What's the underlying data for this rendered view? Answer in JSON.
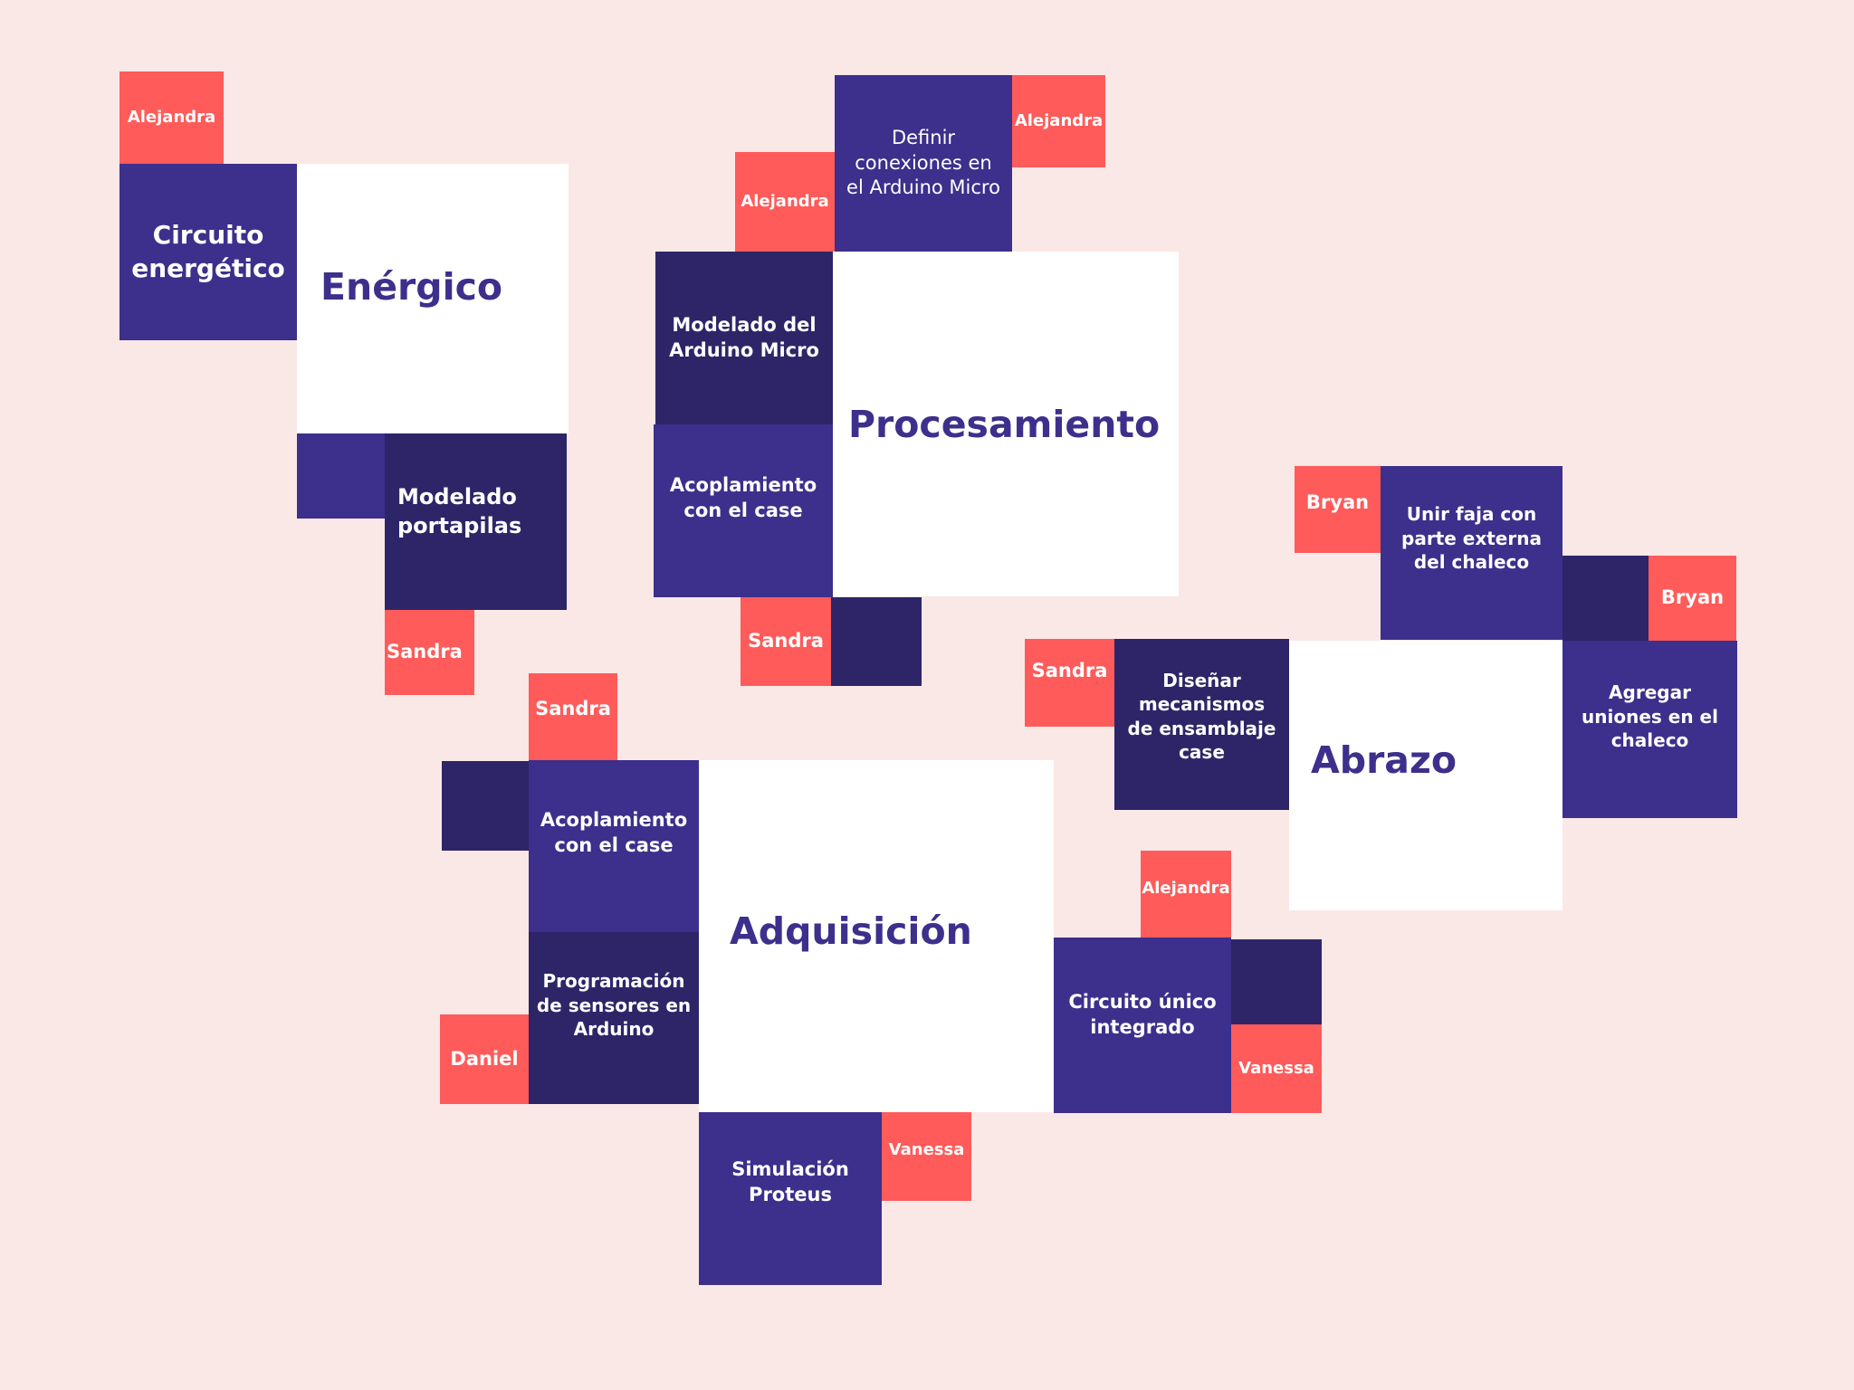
{
  "background_color": "#fae8e6",
  "colors": {
    "purple": "#3d2f8c",
    "dark_purple": "#2e2568",
    "coral": "#fe5b5a",
    "white": "#ffffff"
  },
  "clusters": {
    "energico": {
      "title": "Enérgico",
      "tasks": {
        "circuito": "Circuito energético",
        "portapilas": "Modelado portapilas"
      },
      "people": {
        "p1": "Alejandra",
        "p2": "Sandra"
      }
    },
    "procesamiento": {
      "title": "Procesamiento",
      "tasks": {
        "definir": "Definir conexiones en el Arduino Micro",
        "modelado": "Modelado del Arduino Micro",
        "acoplamiento": "Acoplamiento con el case"
      },
      "people": {
        "p1": "Alejandra",
        "p2": "Alejandra",
        "p3": "Sandra"
      }
    },
    "abrazo": {
      "title": "Abrazo",
      "tasks": {
        "unir": "Unir faja con parte externa del chaleco",
        "disenar": "Diseñar mecanismos de ensamblaje case",
        "agregar": "Agregar uniones en el chaleco"
      },
      "people": {
        "p1": "Bryan",
        "p2": "Bryan",
        "p3": "Sandra"
      }
    },
    "adquisicion": {
      "title": "Adquisición",
      "tasks": {
        "acoplamiento": "Acoplamiento con el case",
        "programacion": "Programación de sensores en Arduino",
        "simulacion": "Simulación Proteus",
        "circuito": "Circuito único integrado"
      },
      "people": {
        "p1": "Sandra",
        "p2": "Daniel",
        "p3": "Vanessa",
        "p4": "Alejandra",
        "p5": "Vanessa"
      }
    }
  }
}
